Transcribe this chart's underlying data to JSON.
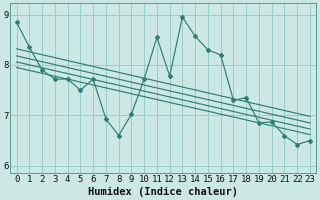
{
  "xlabel": "Humidex (Indice chaleur)",
  "ylabel": "",
  "bg_color": "#cce8e4",
  "grid_color": "#99cccc",
  "line_color": "#2d7f72",
  "xlim": [
    -0.5,
    23.5
  ],
  "ylim": [
    5.85,
    9.22
  ],
  "yticks": [
    6,
    7,
    8,
    9
  ],
  "xticks": [
    0,
    1,
    2,
    3,
    4,
    5,
    6,
    7,
    8,
    9,
    10,
    11,
    12,
    13,
    14,
    15,
    16,
    17,
    18,
    19,
    20,
    21,
    22,
    23
  ],
  "main_series": [
    8.85,
    8.35,
    7.9,
    7.72,
    7.72,
    7.5,
    7.72,
    6.93,
    6.6,
    7.02,
    7.72,
    8.55,
    7.78,
    8.95,
    8.57,
    8.3,
    8.2,
    7.3,
    7.35,
    6.85,
    6.87,
    6.6,
    6.42,
    6.5
  ],
  "reg_lines": [
    {
      "x0": 0,
      "y0": 8.32,
      "x1": 23,
      "y1": 6.98
    },
    {
      "x0": 0,
      "y0": 8.18,
      "x1": 23,
      "y1": 6.85
    },
    {
      "x0": 0,
      "y0": 8.06,
      "x1": 23,
      "y1": 6.73
    },
    {
      "x0": 0,
      "y0": 7.95,
      "x1": 23,
      "y1": 6.62
    }
  ],
  "font_color": "#111111",
  "tick_fontsize": 6.5,
  "label_fontsize": 7.5
}
